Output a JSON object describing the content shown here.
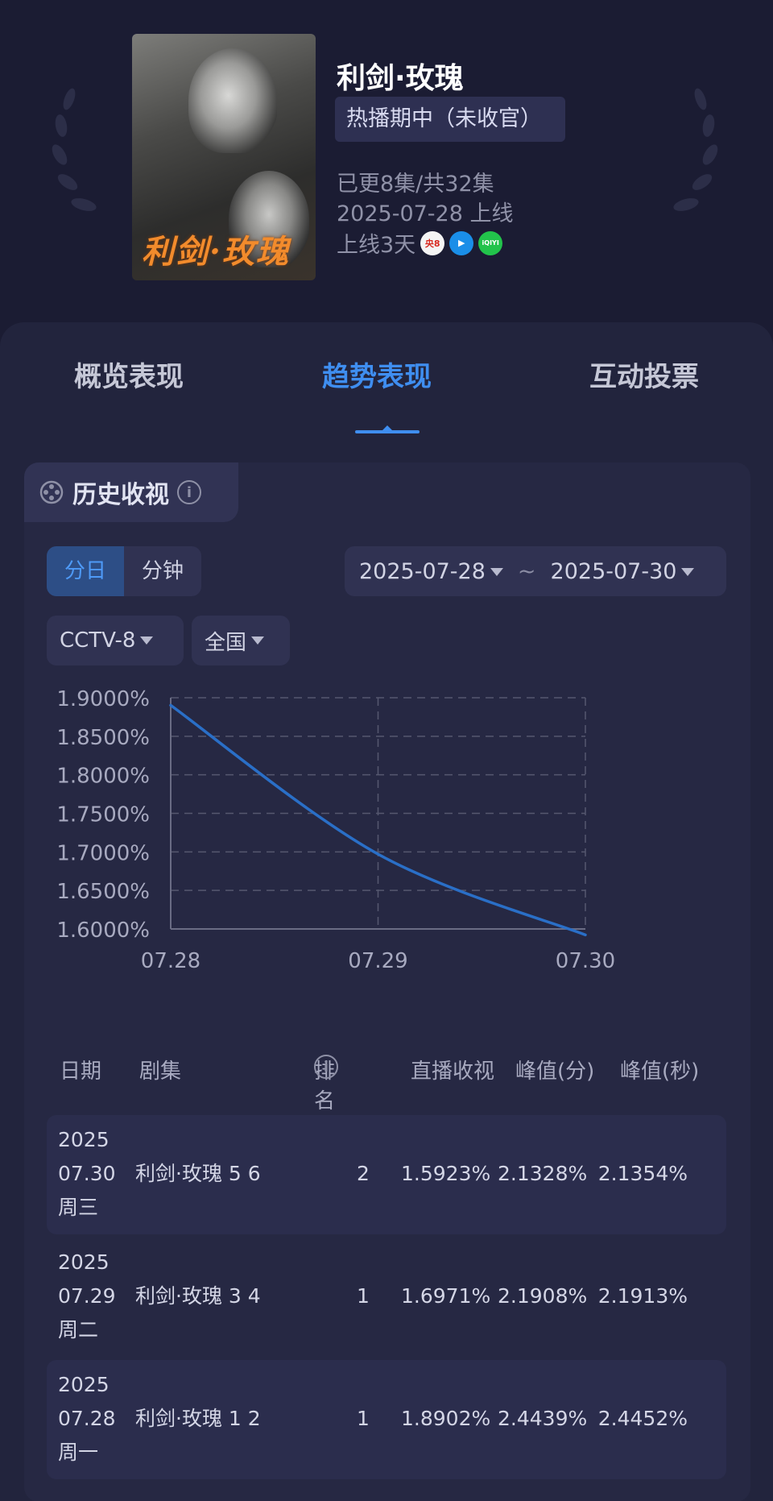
{
  "show": {
    "title": "利剑·玫瑰",
    "poster_title": "利剑·玫瑰",
    "status": "热播期中（未收官）",
    "episodes": "已更8集/共32集",
    "premiere": "2025-07-28 上线",
    "days_online": "上线3天",
    "platforms": [
      {
        "name": "cctv8",
        "label": "央8",
        "color": "#d8281e"
      },
      {
        "name": "tencent-video",
        "label": "▶",
        "color": "#1a8ee8"
      },
      {
        "name": "iqiyi",
        "label": "iQIYI",
        "color": "#22c34b"
      }
    ]
  },
  "tabs": [
    "概览表现",
    "趋势表现",
    "互动投票"
  ],
  "active_tab": "趋势表现",
  "section": {
    "title": "历史收视",
    "granularity": [
      "分日",
      "分钟"
    ],
    "active_granularity": "分日",
    "date_start": "2025-07-28",
    "date_separator": "~",
    "date_end": "2025-07-30",
    "channel": "CCTV-8",
    "region": "全国"
  },
  "chart_data": {
    "type": "line",
    "x": [
      "07.28",
      "07.29",
      "07.30"
    ],
    "series": [
      {
        "values": [
          1.8902,
          1.6971,
          1.5923
        ],
        "color": "#2a6fc7"
      }
    ],
    "ylim": [
      1.6,
      1.9
    ],
    "yticks": [
      "1.9000%",
      "1.8500%",
      "1.8000%",
      "1.7500%",
      "1.7000%",
      "1.6500%",
      "1.6000%"
    ],
    "grid": true
  },
  "table": {
    "headers": [
      "日期",
      "剧集",
      "排名",
      "直播收视",
      "峰值(分)",
      "峰值(秒)"
    ],
    "rows": [
      {
        "year": "2025",
        "date": "07.30",
        "weekday": "周三",
        "episode": "利剑·玫瑰 5 6",
        "rank": "2",
        "live": "1.5923%",
        "peak_min": "2.1328%",
        "peak_sec": "2.1354%"
      },
      {
        "year": "2025",
        "date": "07.29",
        "weekday": "周二",
        "episode": "利剑·玫瑰 3 4",
        "rank": "1",
        "live": "1.6971%",
        "peak_min": "2.1908%",
        "peak_sec": "2.1913%"
      },
      {
        "year": "2025",
        "date": "07.28",
        "weekday": "周一",
        "episode": "利剑·玫瑰 1 2",
        "rank": "1",
        "live": "1.8902%",
        "peak_min": "2.4439%",
        "peak_sec": "2.4452%"
      }
    ]
  }
}
